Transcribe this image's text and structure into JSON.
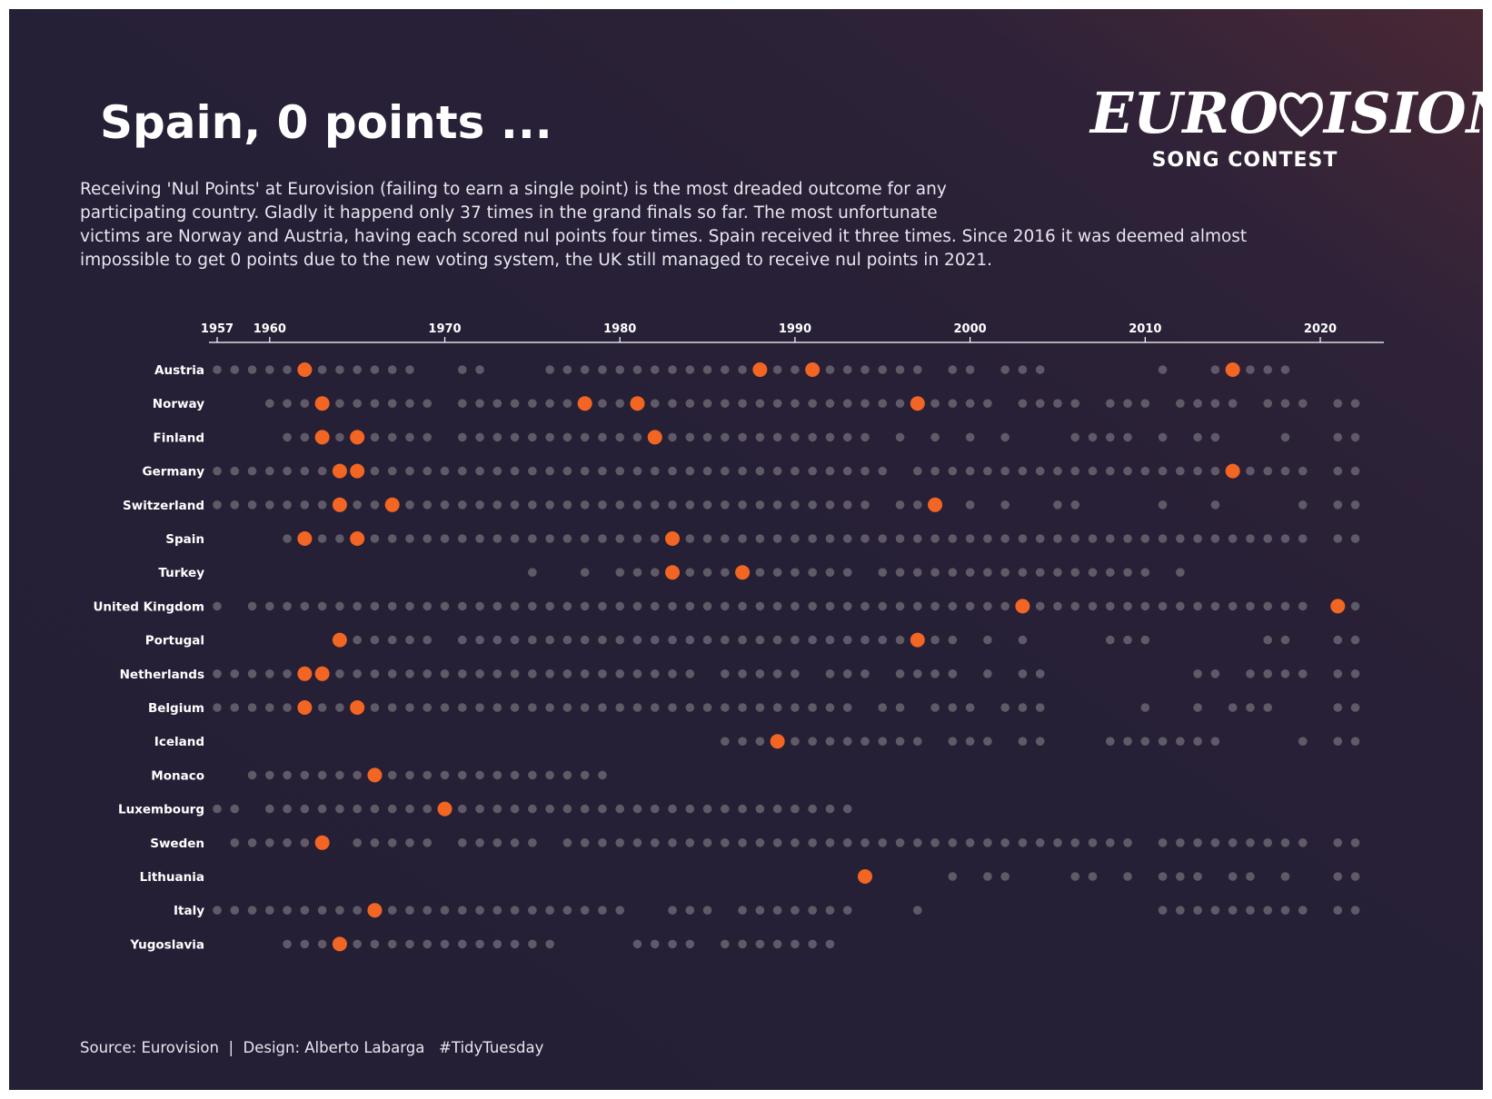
{
  "title": "Spain, 0 points ...",
  "subtitle_lines": [
    "Receiving 'Nul Points' at Eurovision (failing to earn a single point) is the most dreaded outcome for any",
    "participating country. Gladly it happend only 37 times in the grand finals so far. The most unfortunate",
    "victims are Norway and Austria, having each scored nul points four times. Spain received it three times. Since 2016 it was deemed almost",
    "impossible to get 0 points due to the new voting system, the UK still managed to receive nul points in 2021."
  ],
  "logo": {
    "word_left": "EURO",
    "word_right": "ISION",
    "subline": "SONG CONTEST",
    "icon": "heart-icon"
  },
  "caption": "Source: Eurovision  |  Design: Alberto Labarga   #TidyTuesday",
  "colors": {
    "background": "#241f35",
    "participation_dot": "#5f5968",
    "nul_points_dot": "#f26522",
    "axis": "#ffffff",
    "text": "#ffffff"
  },
  "chart_data": {
    "type": "scatter",
    "description_of_encoding_none": "",
    "x_ticks": [
      1957,
      1960,
      1970,
      1980,
      1990,
      2000,
      2010,
      2020
    ],
    "xlim": [
      1957,
      2022
    ],
    "countries": [
      {
        "name": "Austria",
        "participated": [
          1957,
          1958,
          1959,
          1960,
          1961,
          1962,
          1963,
          1964,
          1965,
          1966,
          1967,
          1968,
          1971,
          1972,
          1976,
          1977,
          1978,
          1979,
          1980,
          1981,
          1982,
          1983,
          1984,
          1985,
          1986,
          1987,
          1988,
          1989,
          1990,
          1991,
          1992,
          1993,
          1994,
          1995,
          1996,
          1997,
          1999,
          2000,
          2002,
          2003,
          2004,
          2011,
          2014,
          2015,
          2016,
          2017,
          2018
        ],
        "nul_points": [
          1962,
          1988,
          1991,
          2015
        ]
      },
      {
        "name": "Norway",
        "participated": [
          1960,
          1961,
          1962,
          1963,
          1964,
          1965,
          1966,
          1967,
          1968,
          1969,
          1971,
          1972,
          1973,
          1974,
          1975,
          1976,
          1977,
          1978,
          1979,
          1980,
          1981,
          1982,
          1983,
          1984,
          1985,
          1986,
          1987,
          1988,
          1989,
          1990,
          1991,
          1992,
          1993,
          1994,
          1995,
          1996,
          1997,
          1998,
          1999,
          2000,
          2001,
          2003,
          2004,
          2005,
          2006,
          2008,
          2009,
          2010,
          2012,
          2013,
          2014,
          2015,
          2017,
          2018,
          2019,
          2021,
          2022
        ],
        "nul_points": [
          1963,
          1978,
          1981,
          1997
        ]
      },
      {
        "name": "Finland",
        "participated": [
          1961,
          1962,
          1963,
          1964,
          1965,
          1966,
          1967,
          1968,
          1969,
          1971,
          1972,
          1973,
          1974,
          1975,
          1976,
          1977,
          1978,
          1979,
          1980,
          1981,
          1982,
          1983,
          1984,
          1985,
          1986,
          1987,
          1988,
          1989,
          1990,
          1991,
          1992,
          1993,
          1994,
          1996,
          1998,
          2000,
          2002,
          2006,
          2007,
          2008,
          2009,
          2011,
          2013,
          2014,
          2018,
          2021,
          2022
        ],
        "nul_points": [
          1963,
          1965,
          1982
        ]
      },
      {
        "name": "Germany",
        "participated": [
          1957,
          1958,
          1959,
          1960,
          1961,
          1962,
          1963,
          1964,
          1965,
          1966,
          1967,
          1968,
          1969,
          1970,
          1971,
          1972,
          1973,
          1974,
          1975,
          1976,
          1977,
          1978,
          1979,
          1980,
          1981,
          1982,
          1983,
          1984,
          1985,
          1986,
          1987,
          1988,
          1989,
          1990,
          1991,
          1992,
          1993,
          1994,
          1995,
          1997,
          1998,
          1999,
          2000,
          2001,
          2002,
          2003,
          2004,
          2005,
          2006,
          2007,
          2008,
          2009,
          2010,
          2011,
          2012,
          2013,
          2014,
          2015,
          2016,
          2017,
          2018,
          2019,
          2021,
          2022
        ],
        "nul_points": [
          1964,
          1965,
          2015
        ]
      },
      {
        "name": "Switzerland",
        "participated": [
          1957,
          1958,
          1959,
          1960,
          1961,
          1962,
          1963,
          1964,
          1965,
          1966,
          1967,
          1968,
          1969,
          1970,
          1971,
          1972,
          1973,
          1974,
          1975,
          1976,
          1977,
          1978,
          1979,
          1980,
          1981,
          1982,
          1983,
          1984,
          1985,
          1986,
          1987,
          1988,
          1989,
          1990,
          1991,
          1992,
          1993,
          1994,
          1996,
          1997,
          1998,
          2000,
          2002,
          2005,
          2006,
          2011,
          2014,
          2019,
          2021,
          2022
        ],
        "nul_points": [
          1964,
          1967,
          1998
        ]
      },
      {
        "name": "Spain",
        "participated": [
          1961,
          1962,
          1963,
          1964,
          1965,
          1966,
          1967,
          1968,
          1969,
          1970,
          1971,
          1972,
          1973,
          1974,
          1975,
          1976,
          1977,
          1978,
          1979,
          1980,
          1981,
          1982,
          1983,
          1984,
          1985,
          1986,
          1987,
          1988,
          1989,
          1990,
          1991,
          1992,
          1993,
          1994,
          1995,
          1996,
          1997,
          1998,
          1999,
          2000,
          2001,
          2002,
          2003,
          2004,
          2005,
          2006,
          2007,
          2008,
          2009,
          2010,
          2011,
          2012,
          2013,
          2014,
          2015,
          2016,
          2017,
          2018,
          2019,
          2021,
          2022
        ],
        "nul_points": [
          1962,
          1965,
          1983
        ]
      },
      {
        "name": "Turkey",
        "participated": [
          1975,
          1978,
          1980,
          1981,
          1982,
          1983,
          1984,
          1985,
          1986,
          1987,
          1988,
          1989,
          1990,
          1991,
          1992,
          1993,
          1995,
          1996,
          1997,
          1998,
          1999,
          2000,
          2001,
          2002,
          2003,
          2004,
          2005,
          2006,
          2007,
          2008,
          2009,
          2010,
          2012
        ],
        "nul_points": [
          1983,
          1987
        ]
      },
      {
        "name": "United Kingdom",
        "participated": [
          1957,
          1959,
          1960,
          1961,
          1962,
          1963,
          1964,
          1965,
          1966,
          1967,
          1968,
          1969,
          1970,
          1971,
          1972,
          1973,
          1974,
          1975,
          1976,
          1977,
          1978,
          1979,
          1980,
          1981,
          1982,
          1983,
          1984,
          1985,
          1986,
          1987,
          1988,
          1989,
          1990,
          1991,
          1992,
          1993,
          1994,
          1995,
          1996,
          1997,
          1998,
          1999,
          2000,
          2001,
          2002,
          2003,
          2004,
          2005,
          2006,
          2007,
          2008,
          2009,
          2010,
          2011,
          2012,
          2013,
          2014,
          2015,
          2016,
          2017,
          2018,
          2019,
          2021,
          2022
        ],
        "nul_points": [
          2003,
          2021
        ]
      },
      {
        "name": "Portugal",
        "participated": [
          1964,
          1965,
          1966,
          1967,
          1968,
          1969,
          1971,
          1972,
          1973,
          1974,
          1975,
          1976,
          1977,
          1978,
          1979,
          1980,
          1981,
          1982,
          1983,
          1984,
          1985,
          1986,
          1987,
          1988,
          1989,
          1990,
          1991,
          1992,
          1993,
          1994,
          1995,
          1996,
          1997,
          1998,
          1999,
          2001,
          2003,
          2008,
          2009,
          2010,
          2017,
          2018,
          2021,
          2022
        ],
        "nul_points": [
          1964,
          1997
        ]
      },
      {
        "name": "Netherlands",
        "participated": [
          1957,
          1958,
          1959,
          1960,
          1961,
          1962,
          1963,
          1964,
          1965,
          1966,
          1967,
          1968,
          1969,
          1970,
          1971,
          1972,
          1973,
          1974,
          1975,
          1976,
          1977,
          1978,
          1979,
          1980,
          1981,
          1982,
          1983,
          1984,
          1986,
          1987,
          1988,
          1989,
          1990,
          1992,
          1993,
          1994,
          1996,
          1997,
          1998,
          1999,
          2001,
          2003,
          2004,
          2013,
          2014,
          2016,
          2017,
          2018,
          2019,
          2021,
          2022
        ],
        "nul_points": [
          1962,
          1963
        ]
      },
      {
        "name": "Belgium",
        "participated": [
          1957,
          1958,
          1959,
          1960,
          1961,
          1962,
          1963,
          1964,
          1965,
          1966,
          1967,
          1968,
          1969,
          1970,
          1971,
          1972,
          1973,
          1974,
          1975,
          1976,
          1977,
          1978,
          1979,
          1980,
          1981,
          1982,
          1983,
          1984,
          1985,
          1986,
          1987,
          1988,
          1989,
          1990,
          1991,
          1992,
          1993,
          1995,
          1996,
          1998,
          1999,
          2000,
          2002,
          2003,
          2004,
          2010,
          2013,
          2015,
          2016,
          2017,
          2021,
          2022
        ],
        "nul_points": [
          1962,
          1965
        ]
      },
      {
        "name": "Iceland",
        "participated": [
          1986,
          1987,
          1988,
          1989,
          1990,
          1991,
          1992,
          1993,
          1994,
          1995,
          1996,
          1997,
          1999,
          2000,
          2001,
          2003,
          2004,
          2008,
          2009,
          2010,
          2011,
          2012,
          2013,
          2014,
          2019,
          2021,
          2022
        ],
        "nul_points": [
          1989
        ]
      },
      {
        "name": "Monaco",
        "participated": [
          1959,
          1960,
          1961,
          1962,
          1963,
          1964,
          1965,
          1966,
          1967,
          1968,
          1969,
          1970,
          1971,
          1972,
          1973,
          1974,
          1975,
          1976,
          1977,
          1978,
          1979
        ],
        "nul_points": [
          1966
        ]
      },
      {
        "name": "Luxembourg",
        "participated": [
          1957,
          1958,
          1960,
          1961,
          1962,
          1963,
          1964,
          1965,
          1966,
          1967,
          1968,
          1969,
          1970,
          1971,
          1972,
          1973,
          1974,
          1975,
          1976,
          1977,
          1978,
          1979,
          1980,
          1981,
          1982,
          1983,
          1984,
          1985,
          1986,
          1987,
          1988,
          1989,
          1990,
          1991,
          1992,
          1993
        ],
        "nul_points": [
          1970
        ]
      },
      {
        "name": "Sweden",
        "participated": [
          1958,
          1959,
          1960,
          1961,
          1962,
          1963,
          1965,
          1966,
          1967,
          1968,
          1969,
          1971,
          1972,
          1973,
          1974,
          1975,
          1977,
          1978,
          1979,
          1980,
          1981,
          1982,
          1983,
          1984,
          1985,
          1986,
          1987,
          1988,
          1989,
          1990,
          1991,
          1992,
          1993,
          1994,
          1995,
          1996,
          1997,
          1998,
          1999,
          2000,
          2001,
          2002,
          2003,
          2004,
          2005,
          2006,
          2007,
          2008,
          2009,
          2011,
          2012,
          2013,
          2014,
          2015,
          2016,
          2017,
          2018,
          2019,
          2021,
          2022
        ],
        "nul_points": [
          1963
        ]
      },
      {
        "name": "Lithuania",
        "participated": [
          1994,
          1999,
          2001,
          2002,
          2006,
          2007,
          2009,
          2011,
          2012,
          2013,
          2015,
          2016,
          2018,
          2021,
          2022
        ],
        "nul_points": [
          1994
        ]
      },
      {
        "name": "Italy",
        "participated": [
          1957,
          1958,
          1959,
          1960,
          1961,
          1962,
          1963,
          1964,
          1965,
          1966,
          1967,
          1968,
          1969,
          1970,
          1971,
          1972,
          1973,
          1974,
          1975,
          1976,
          1977,
          1978,
          1979,
          1980,
          1983,
          1984,
          1985,
          1987,
          1988,
          1989,
          1990,
          1991,
          1992,
          1993,
          1997,
          2011,
          2012,
          2013,
          2014,
          2015,
          2016,
          2017,
          2018,
          2019,
          2021,
          2022
        ],
        "nul_points": [
          1966
        ]
      },
      {
        "name": "Yugoslavia",
        "participated": [
          1961,
          1962,
          1963,
          1964,
          1965,
          1966,
          1967,
          1968,
          1969,
          1970,
          1971,
          1972,
          1973,
          1974,
          1975,
          1976,
          1981,
          1982,
          1983,
          1984,
          1986,
          1987,
          1988,
          1989,
          1990,
          1991,
          1992
        ],
        "nul_points": [
          1964
        ]
      }
    ]
  }
}
